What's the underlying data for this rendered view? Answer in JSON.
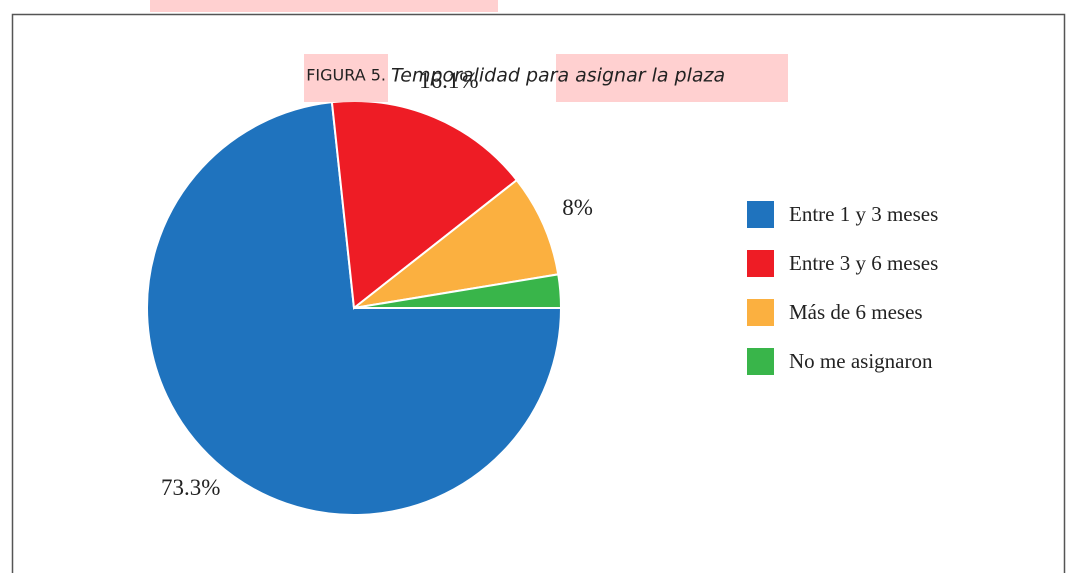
{
  "chart_data": {
    "type": "pie",
    "title_prefix": "FIGURA 5.",
    "title": "Temporalidad para asignar la plaza",
    "categories": [
      "Entre 1 y 3 meses",
      "Entre 3 y 6 meses",
      "Más de 6 meses",
      "No me asignaron"
    ],
    "values": [
      73.3,
      16.1,
      8,
      2.6
    ],
    "value_labels": [
      "73.3%",
      "16.1%",
      "8%",
      null
    ],
    "colors": [
      "#1f73be",
      "#ee1c25",
      "#fbb040",
      "#39b54a"
    ],
    "legend": "right"
  }
}
